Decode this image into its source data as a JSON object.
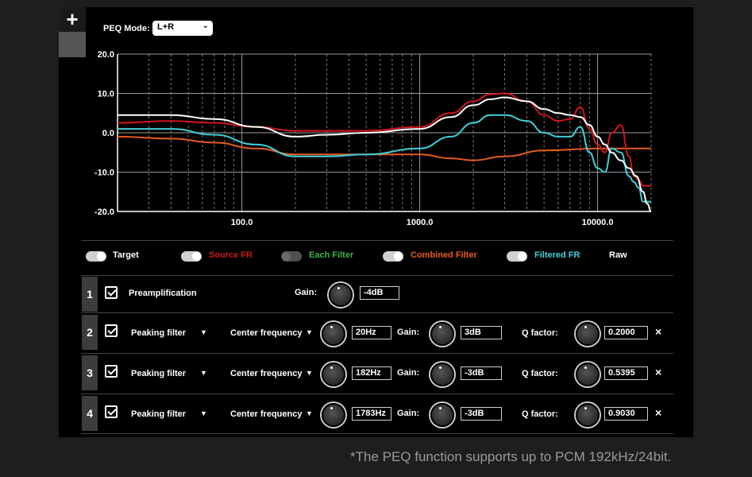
{
  "top": {
    "add_label": "+",
    "mode_label": "PEQ Mode:",
    "mode_value": "L+R"
  },
  "chart_data": {
    "type": "line",
    "x_scale": "log",
    "xlim": [
      20,
      20000
    ],
    "ylim": [
      -20,
      20
    ],
    "y_ticks": [
      "20.0",
      "10.0",
      "0.0",
      "-10.0",
      "-20.0"
    ],
    "x_ticks": [
      "100.0",
      "1000.0",
      "10000.0"
    ],
    "grid": true,
    "series": [
      {
        "name": "Source FR",
        "color": "#d0151b",
        "x": [
          20,
          40,
          70,
          120,
          200,
          300,
          500,
          1000,
          1500,
          2000,
          2500,
          3000,
          4000,
          5000,
          6000,
          7000,
          8000,
          9000,
          10000,
          11000,
          12000,
          13500,
          15000,
          16000,
          17000,
          18000,
          20000
        ],
        "y": [
          2.5,
          3,
          2.5,
          1.5,
          0.5,
          0.5,
          0.5,
          1.5,
          5,
          8,
          9.8,
          10,
          8,
          4.5,
          3,
          3.5,
          6.5,
          1,
          -3,
          -5,
          0,
          2,
          -6,
          -11,
          -12,
          -13.5,
          -13.5
        ]
      },
      {
        "name": "Target",
        "color": "#ffffff",
        "x": [
          20,
          40,
          70,
          120,
          200,
          300,
          500,
          1000,
          1500,
          2000,
          2500,
          3000,
          4000,
          5000,
          6000,
          7000,
          8000,
          9000,
          10000,
          11000,
          12000,
          13500,
          15000,
          16500,
          18000,
          19000,
          20000
        ],
        "y": [
          4.5,
          4.5,
          3.5,
          1.5,
          -1,
          -0.5,
          0,
          1,
          4,
          7,
          8.5,
          9,
          8,
          6,
          5,
          4.5,
          4,
          2,
          -1,
          -3,
          -5,
          -7,
          -9,
          -11,
          -15,
          -18,
          -20
        ]
      },
      {
        "name": "Filtered FR",
        "color": "#3fd0d9",
        "x": [
          20,
          40,
          70,
          120,
          200,
          300,
          500,
          1000,
          1500,
          2000,
          2500,
          3000,
          4000,
          5000,
          6000,
          7000,
          8000,
          9000,
          10000,
          11000,
          12000,
          13500,
          15000,
          16000,
          17000,
          18000,
          20000
        ],
        "y": [
          1,
          1,
          -0.5,
          -3,
          -6,
          -6,
          -5.5,
          -4,
          -1,
          2.5,
          4.5,
          4.5,
          3,
          0,
          -1,
          -1,
          1.5,
          -5,
          -9,
          -10,
          -4,
          -5,
          -11,
          -12.5,
          -14,
          -17.5,
          -17.5
        ]
      },
      {
        "name": "Combined Filter",
        "color": "#e65b1f",
        "x": [
          20,
          40,
          70,
          120,
          200,
          500,
          1000,
          1500,
          2000,
          3000,
          5000,
          10000,
          20000
        ],
        "y": [
          -1,
          -1.5,
          -2.5,
          -4,
          -5.5,
          -5.5,
          -5.5,
          -6.5,
          -7,
          -6,
          -4.5,
          -4,
          -4
        ]
      }
    ]
  },
  "legend": {
    "target": "Target",
    "source_fr": "Source FR",
    "each_filter": "Each Filter",
    "combined_filter": "Combined Filter",
    "filtered_fr": "Filtered FR",
    "raw": "Raw",
    "colors": {
      "source": "#d0151b",
      "each": "#3bb54a",
      "combined": "#e65b1f",
      "filtered": "#3fd0d9"
    }
  },
  "preamp": {
    "index": "1",
    "label": "Preamplification",
    "gain_label": "Gain:",
    "gain_value": "-4dB"
  },
  "filters": [
    {
      "index": "2",
      "type": "Peaking filter",
      "freq_label": "Center frequency",
      "freq": "20Hz",
      "gain_label": "Gain:",
      "gain": "3dB",
      "q_label": "Q factor:",
      "q": "0.2000",
      "close": "×"
    },
    {
      "index": "3",
      "type": "Peaking filter",
      "freq_label": "Center frequency",
      "freq": "182Hz",
      "gain_label": "Gain:",
      "gain": "-3dB",
      "q_label": "Q factor:",
      "q": "0.5395",
      "close": "×"
    },
    {
      "index": "4",
      "type": "Peaking filter",
      "freq_label": "Center frequency",
      "freq": "1783Hz",
      "gain_label": "Gain:",
      "gain": "-3dB",
      "q_label": "Q factor:",
      "q": "0.9030",
      "close": "×"
    }
  ],
  "footnote": "*The PEQ function supports up to  PCM 192kHz/24bit."
}
